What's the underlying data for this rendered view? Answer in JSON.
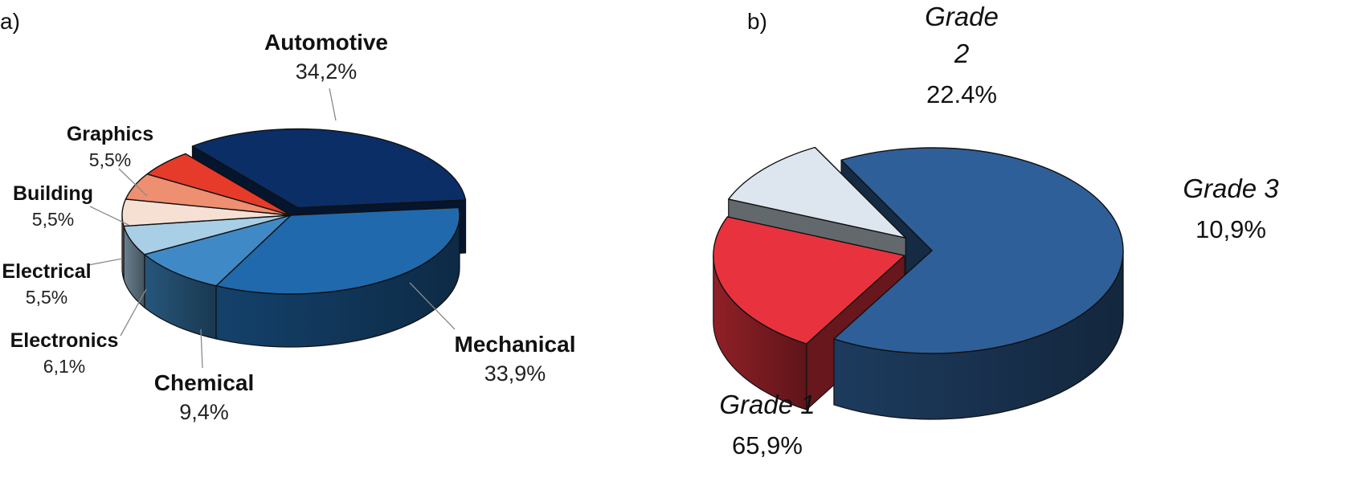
{
  "chart_data": [
    {
      "type": "pie",
      "panel_label": "a)",
      "slices": [
        {
          "label": "Automotive",
          "value": 34.2,
          "value_text": "34,2%",
          "color": "#0b2e66"
        },
        {
          "label": "Mechanical",
          "value": 33.9,
          "value_text": "33,9%",
          "color": "#2169ad"
        },
        {
          "label": "Chemical",
          "value": 9.4,
          "value_text": "9,4%",
          "color": "#3f8ac6"
        },
        {
          "label": "Electronics",
          "value": 6.1,
          "value_text": "6,1%",
          "color": "#a9cfe6"
        },
        {
          "label": "Electrical",
          "value": 5.5,
          "value_text": "5,5%",
          "color": "#f6e0d4"
        },
        {
          "label": "Building",
          "value": 5.5,
          "value_text": "5,5%",
          "color": "#ee8f71"
        },
        {
          "label": "Graphics",
          "value": 5.5,
          "value_text": "5,5%",
          "color": "#e63b2a"
        }
      ]
    },
    {
      "type": "pie",
      "panel_label": "b)",
      "slices": [
        {
          "label": "Grade 1",
          "label_lines": [
            "Grade 1"
          ],
          "value": 65.9,
          "value_text": "65,9%",
          "color": "#2f5f98"
        },
        {
          "label": "Grade 2",
          "label_lines": [
            "Grade",
            "2"
          ],
          "value": 22.4,
          "value_text": "22.4%",
          "color": "#e8333f"
        },
        {
          "label": "Grade 3",
          "label_lines": [
            "Grade 3"
          ],
          "value": 10.9,
          "value_text": "10,9%",
          "color": "#dde6ef"
        }
      ]
    }
  ]
}
